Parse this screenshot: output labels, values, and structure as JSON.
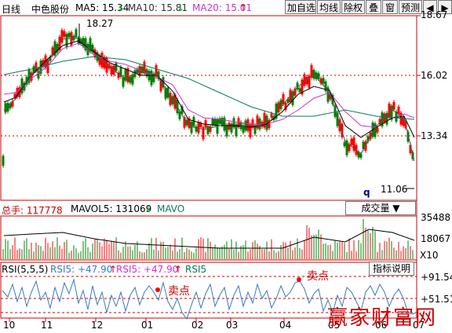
{
  "header": {
    "period": "日线",
    "stock": "中色股份",
    "ma5_label": "MA5: 15.34",
    "ma10_label": "MA10: 15.81",
    "ma20_label": "MA20: 15.01",
    "buttons": [
      "加自选",
      "均线",
      "除权",
      "叠",
      "窗",
      "预测"
    ],
    "arrows": [
      "◀",
      "▶"
    ],
    "colors": {
      "ma5": "#000000",
      "ma10": "#333333",
      "ma20": "#cc33cc",
      "up": "#ff0000",
      "down": "#008000",
      "axis": "#cc0000"
    }
  },
  "price_axis": [
    "18.67",
    "16.02",
    "13.34"
  ],
  "annotations": {
    "high": "18.27",
    "low": "11.06",
    "q": "q"
  },
  "volume": {
    "label": "总手: 117778",
    "mavol5": "MAVOL5: 131069",
    "mavo": "MAVO",
    "selector": "成交量",
    "axis": [
      "35488",
      "18067"
    ],
    "unit": "X10"
  },
  "rsi": {
    "label": "RSI(5,5,5)",
    "rsi5a": "RSI5: +47.90",
    "rsi5b": "RSI5: +47.90",
    "rsi5c": "RSI5",
    "button": "指标说明",
    "axis": [
      "+91.54",
      "+51.51"
    ],
    "sell1": "卖点",
    "sell2": "卖点"
  },
  "x_axis": [
    "10",
    "11",
    "12",
    "01",
    "02",
    "03",
    "04",
    "05",
    "06",
    "07"
  ],
  "watermark": "赢家财富网"
}
